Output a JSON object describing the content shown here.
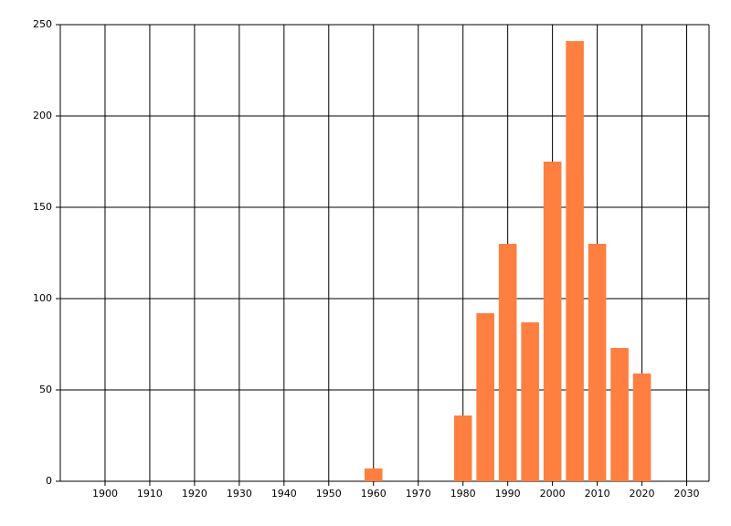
{
  "chart_data": {
    "type": "bar",
    "x": [
      1960,
      1980,
      1985,
      1990,
      1995,
      2000,
      2005,
      2010,
      2015,
      2020
    ],
    "values": [
      7,
      36,
      92,
      130,
      87,
      175,
      241,
      130,
      73,
      59
    ],
    "color": "#ff7f40",
    "xlim": [
      1890,
      2035
    ],
    "xticks": [
      1900,
      1910,
      1920,
      1930,
      1940,
      1950,
      1960,
      1970,
      1980,
      1990,
      2000,
      2010,
      2020,
      2030
    ],
    "ylim": [
      0,
      250
    ],
    "yticks": [
      0,
      50,
      100,
      150,
      200,
      250
    ],
    "grid": true
  }
}
